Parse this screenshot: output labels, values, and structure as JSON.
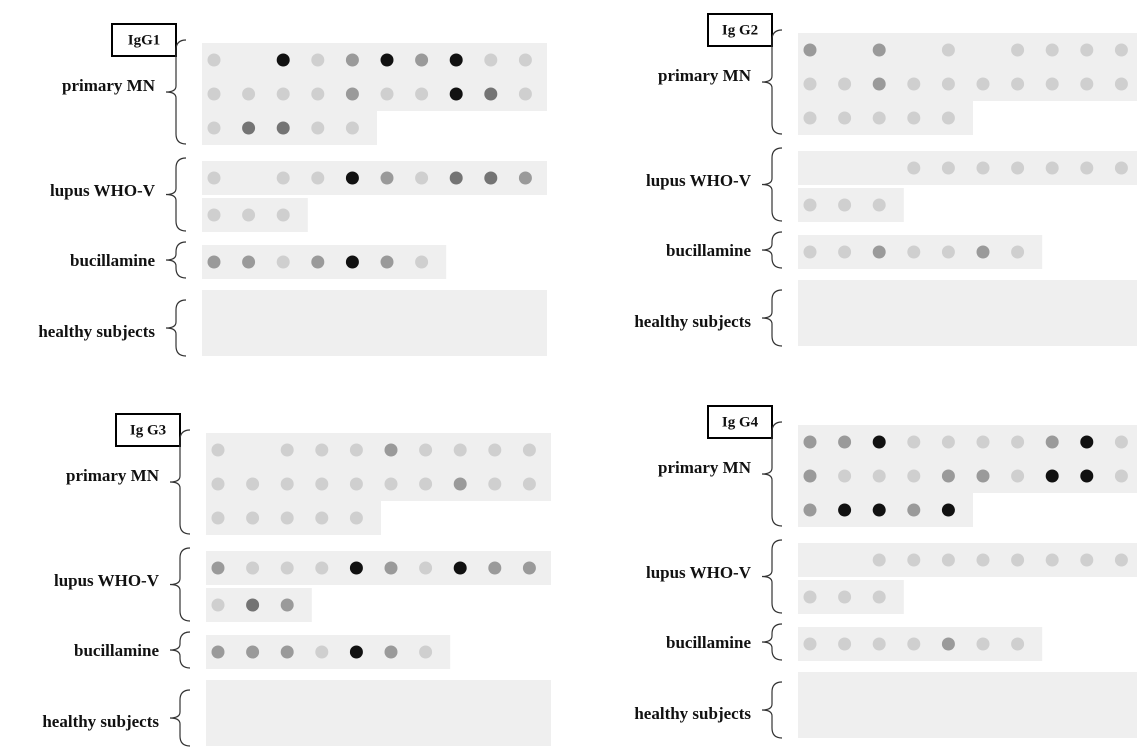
{
  "panels": [
    {
      "title": "IgG1",
      "groups": [
        {
          "label": "primary MN"
        },
        {
          "label": "lupus WHO-V"
        },
        {
          "label": "bucillamine"
        },
        {
          "label": "healthy subjects"
        }
      ]
    },
    {
      "title": "Ig G2",
      "groups": [
        {
          "label": "primary MN"
        },
        {
          "label": "lupus WHO-V"
        },
        {
          "label": "bucillamine"
        },
        {
          "label": "healthy subjects"
        }
      ]
    },
    {
      "title": "Ig G3",
      "groups": [
        {
          "label": "primary MN"
        },
        {
          "label": "lupus WHO-V"
        },
        {
          "label": "bucillamine"
        },
        {
          "label": "healthy subjects"
        }
      ]
    },
    {
      "title": "Ig G4",
      "groups": [
        {
          "label": "primary MN"
        },
        {
          "label": "lupus WHO-V"
        },
        {
          "label": "bucillamine"
        },
        {
          "label": "healthy subjects"
        }
      ]
    }
  ]
}
